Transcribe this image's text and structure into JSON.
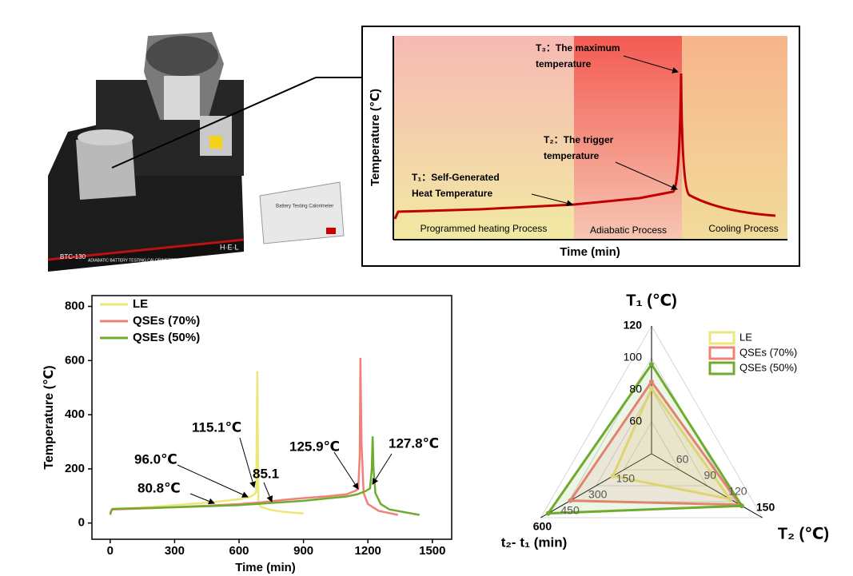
{
  "photo": {
    "labels": [
      "BTC-130",
      "ADIABATIC BATTERY TESTING CALORIMETER",
      "H·E·L",
      "Battery Testing Calorimeter"
    ]
  },
  "schematic": {
    "y_label": "Temperature (℃)",
    "x_label": "Time (min)",
    "regions": [
      "Programmed heating Process",
      "Adiabatic Process",
      "Cooling Process"
    ],
    "annotations": [
      [
        "T₃：The maximum",
        "temperature"
      ],
      [
        "T₂：The trigger",
        "temperature"
      ],
      [
        "T₁：Self-Generated",
        "Heat Temperature"
      ]
    ]
  },
  "chart_data": [
    {
      "type": "line",
      "x_label": "Time (min)",
      "y_label": "Temperature (℃)",
      "xlim": [
        -85,
        1590
      ],
      "ylim": [
        -60,
        840
      ],
      "xticks": [
        0,
        300,
        600,
        900,
        1200,
        1500
      ],
      "yticks": [
        0,
        200,
        400,
        600,
        800
      ],
      "grid": false,
      "legend": "upper-left",
      "series": [
        {
          "name": "LE",
          "color": "#ece77a",
          "x": [
            0,
            5,
            10,
            100,
            200,
            300,
            400,
            500,
            600,
            650,
            670,
            680,
            685,
            690,
            700,
            750,
            800,
            900
          ],
          "values": [
            30,
            45,
            52,
            55,
            60,
            66,
            72,
            79,
            88,
            96,
            105,
            115,
            560,
            80,
            60,
            48,
            42,
            35
          ]
        },
        {
          "name": "QSEs (70%)",
          "color": "#f08078",
          "x": [
            0,
            5,
            10,
            200,
            400,
            600,
            700,
            800,
            900,
            1000,
            1100,
            1140,
            1155,
            1162,
            1165,
            1170,
            1180,
            1200,
            1250,
            1340
          ],
          "values": [
            30,
            45,
            50,
            55,
            62,
            70,
            76,
            85,
            92,
            98,
            106,
            118,
            126,
            250,
            610,
            300,
            110,
            70,
            45,
            30
          ]
        },
        {
          "name": "QSEs (50%)",
          "color": "#6fab2e",
          "x": [
            0,
            5,
            10,
            300,
            600,
            900,
            1000,
            1100,
            1150,
            1190,
            1210,
            1218,
            1222,
            1226,
            1235,
            1260,
            1300,
            1440
          ],
          "values": [
            35,
            45,
            52,
            58,
            66,
            82,
            90,
            98,
            106,
            118,
            128,
            200,
            320,
            200,
            110,
            70,
            50,
            30
          ]
        }
      ],
      "annotations": [
        "115.1℃",
        "96.0℃",
        "80.8℃",
        "85.1",
        "125.9℃",
        "127.8℃"
      ]
    },
    {
      "type": "radar",
      "legend": "upper-right",
      "axes": [
        {
          "name": "T₁ (℃)",
          "lim": [
            40,
            120
          ],
          "ticks": [
            60,
            80,
            100,
            120
          ]
        },
        {
          "name": "T₂ (℃)",
          "lim": [
            30,
            150
          ],
          "ticks": [
            60,
            90,
            120,
            150
          ]
        },
        {
          "name": "t₂- t₁ (min)",
          "lim": [
            0,
            600
          ],
          "ticks": [
            150,
            300,
            450,
            600
          ]
        }
      ],
      "series": [
        {
          "name": "LE",
          "color": "#ece77a",
          "values": [
            80.8,
            115.1,
            210
          ]
        },
        {
          "name": "QSEs (70%)",
          "color": "#f08078",
          "values": [
            85.1,
            125.9,
            440
          ]
        },
        {
          "name": "QSEs (50%)",
          "color": "#6fab2e",
          "values": [
            96.0,
            127.8,
            560
          ]
        }
      ]
    }
  ]
}
